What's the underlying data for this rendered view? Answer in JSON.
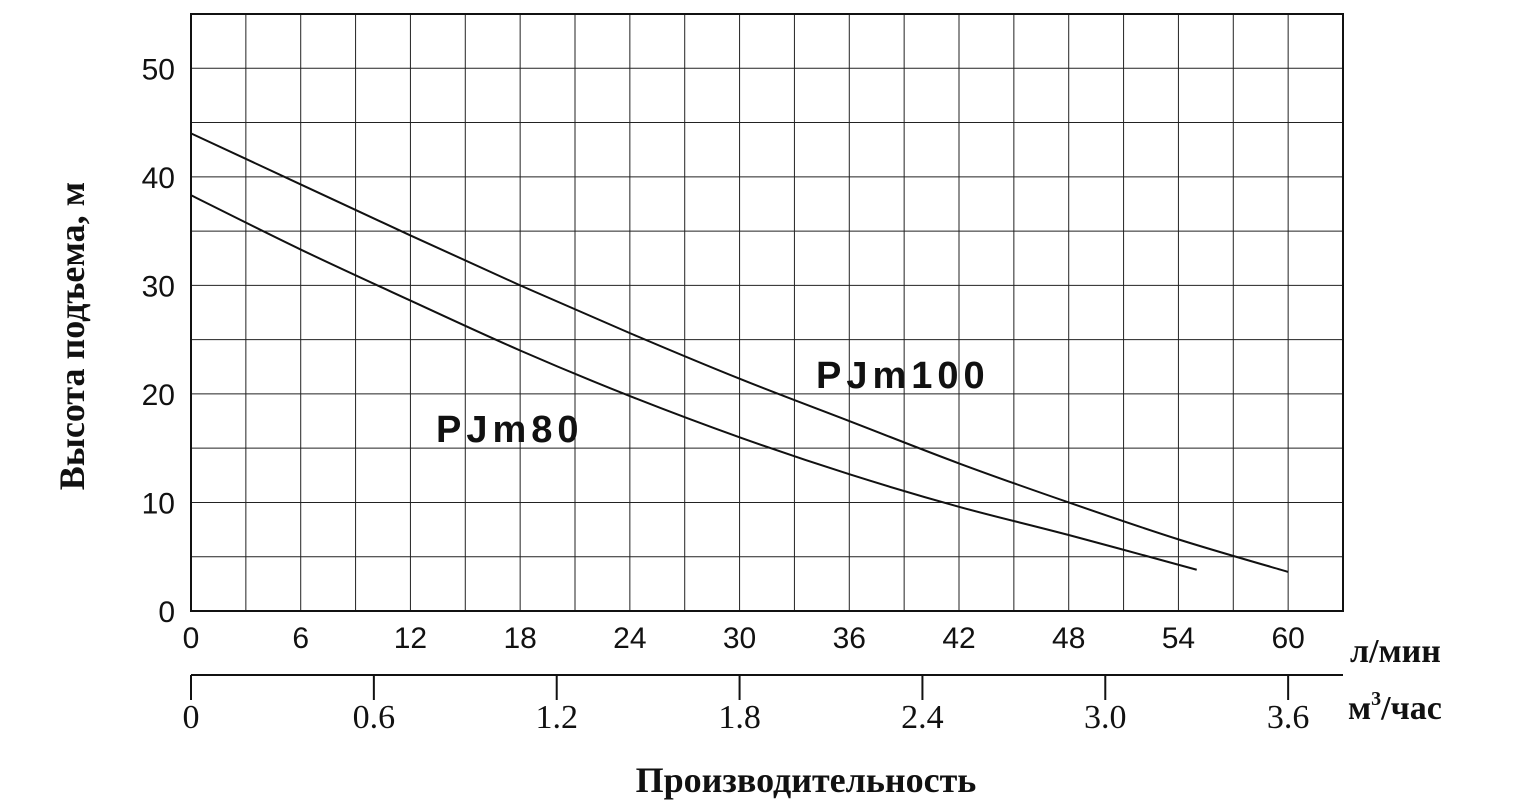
{
  "chart_data": {
    "type": "line",
    "xlabel": "Производительность",
    "ylabel": "Высота подъема, м",
    "x_unit": "л/мин",
    "x2_unit_main": "м",
    "x2_unit_sup": "3",
    "x2_unit_tail": "/час",
    "xlim": [
      0,
      63
    ],
    "ylim": [
      0,
      55
    ],
    "grid": true,
    "x_ticks": [
      "0",
      "6",
      "12",
      "18",
      "24",
      "30",
      "36",
      "42",
      "48",
      "54",
      "60"
    ],
    "x_tick_values": [
      0,
      6,
      12,
      18,
      24,
      30,
      36,
      42,
      48,
      54,
      60
    ],
    "x2_ticks": [
      "0",
      "0.6",
      "1.2",
      "1.8",
      "2.4",
      "3.0",
      "3.6"
    ],
    "x2_tick_values": [
      0,
      0.6,
      1.2,
      1.8,
      2.4,
      3.0,
      3.6
    ],
    "y_ticks": [
      "0",
      "10",
      "20",
      "30",
      "40",
      "50"
    ],
    "y_tick_values": [
      0,
      10,
      20,
      30,
      40,
      50
    ],
    "series": [
      {
        "name": "PJm100",
        "points": [
          [
            0,
            44
          ],
          [
            6,
            39.3
          ],
          [
            12,
            34.6
          ],
          [
            18,
            30
          ],
          [
            24,
            25.6
          ],
          [
            30,
            21.4
          ],
          [
            36,
            17.5
          ],
          [
            42,
            13.6
          ],
          [
            48,
            10
          ],
          [
            54,
            6.6
          ],
          [
            60,
            3.6
          ]
        ]
      },
      {
        "name": "PJm80",
        "points": [
          [
            0,
            38.3
          ],
          [
            6,
            33.3
          ],
          [
            12,
            28.6
          ],
          [
            18,
            24
          ],
          [
            24,
            19.8
          ],
          [
            30,
            16
          ],
          [
            36,
            12.6
          ],
          [
            42,
            9.6
          ],
          [
            48,
            7
          ],
          [
            55,
            3.8
          ]
        ]
      }
    ]
  }
}
